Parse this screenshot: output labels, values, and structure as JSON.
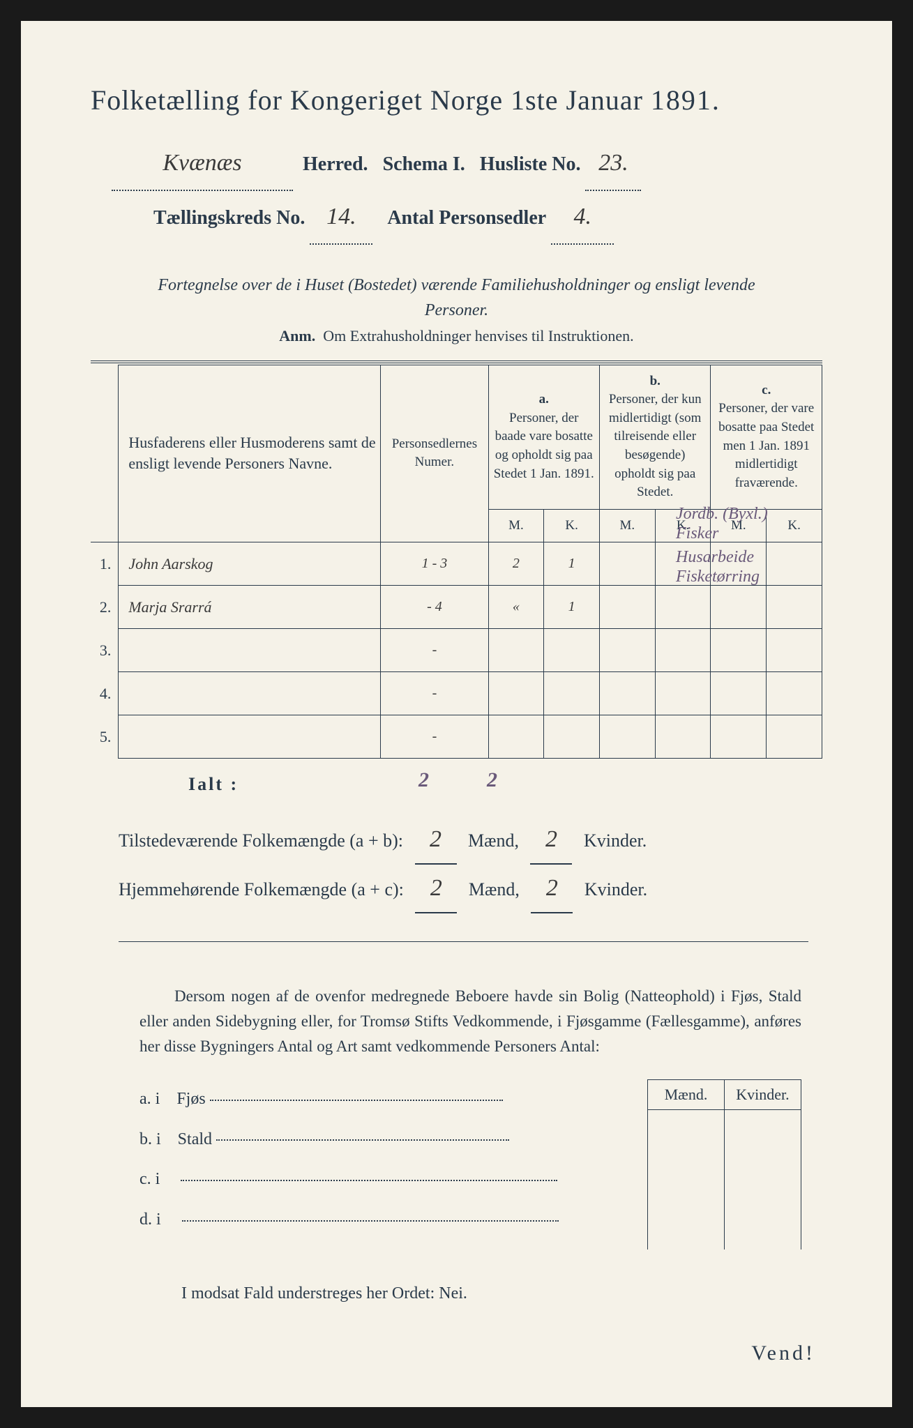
{
  "title": {
    "pre": "Folketælling for Kongeriget Norge 1ste Januar",
    "year": "1891."
  },
  "line2": {
    "herred_value": "Kvænæs",
    "herred_label": "Herred.",
    "schema_label": "Schema I.",
    "husliste_label": "Husliste No.",
    "husliste_value": "23."
  },
  "line3": {
    "kreds_label": "Tællingskreds No.",
    "kreds_value": "14.",
    "antal_label": "Antal Personsedler",
    "antal_value": "4."
  },
  "section_note": "Fortegnelse over de i Huset (Bostedet) værende Familiehusholdninger og ensligt levende Personer.",
  "anm": {
    "label": "Anm.",
    "text": "Om Extrahusholdninger henvises til Instruktionen."
  },
  "table": {
    "head": {
      "names": "Husfaderens eller Husmoderens samt de ensligt levende Personers Navne.",
      "nums": "Personsedlernes Numer.",
      "a_label": "a.",
      "a_text": "Personer, der baade vare bosatte og opholdt sig paa Stedet 1 Jan. 1891.",
      "b_label": "b.",
      "b_text": "Personer, der kun midlertidigt (som tilreisende eller besøgende) opholdt sig paa Stedet.",
      "c_label": "c.",
      "c_text": "Personer, der vare bosatte paa Stedet men 1 Jan. 1891 midlertidigt fraværende.",
      "M": "M.",
      "K": "K."
    },
    "rows": [
      {
        "n": "1.",
        "name": "John Aarskog",
        "num": "1 - 3",
        "aM": "2",
        "aK": "1",
        "bM": "",
        "bK": "",
        "cM": "",
        "cK": "",
        "side": "Jordb. (Byxl.)\nFisker"
      },
      {
        "n": "2.",
        "name": "Marja Srarrá",
        "num": "- 4",
        "aM": "«",
        "aK": "1",
        "bM": "",
        "bK": "",
        "cM": "",
        "cK": "",
        "side": "Husarbeide\nFisketørring"
      },
      {
        "n": "3.",
        "name": "",
        "num": "-",
        "aM": "",
        "aK": "",
        "bM": "",
        "bK": "",
        "cM": "",
        "cK": "",
        "side": ""
      },
      {
        "n": "4.",
        "name": "",
        "num": "-",
        "aM": "",
        "aK": "",
        "bM": "",
        "bK": "",
        "cM": "",
        "cK": "",
        "side": ""
      },
      {
        "n": "5.",
        "name": "",
        "num": "-",
        "aM": "",
        "aK": "",
        "bM": "",
        "bK": "",
        "cM": "",
        "cK": "",
        "side": ""
      }
    ]
  },
  "ialt": {
    "label": "Ialt :",
    "m": "2",
    "k": "2"
  },
  "totals": {
    "line1": {
      "label": "Tilstedeværende Folkemængde (a + b):",
      "m": "2",
      "mlabel": "Mænd,",
      "k": "2",
      "klabel": "Kvinder."
    },
    "line2": {
      "label": "Hjemmehørende Folkemængde (a + c):",
      "m": "2",
      "mlabel": "Mænd,",
      "k": "2",
      "klabel": "Kvinder."
    }
  },
  "para": "Dersom nogen af de ovenfor medregnede Beboere havde sin Bolig (Natteophold) i Fjøs, Stald eller anden Sidebygning eller, for Tromsø Stifts Vedkommende, i Fjøsgamme (Fællesgamme), anføres her disse Bygningers Antal og Art samt vedkommende Personers Antal:",
  "lower": {
    "rows": [
      {
        "pre": "a.  i",
        "label": "Fjøs"
      },
      {
        "pre": "b.  i",
        "label": "Stald"
      },
      {
        "pre": "c.  i",
        "label": ""
      },
      {
        "pre": "d.  i",
        "label": ""
      }
    ],
    "head": {
      "m": "Mænd.",
      "k": "Kvinder."
    }
  },
  "final": "I modsat Fald understreges her Ordet: Nei.",
  "vend": "Vend!"
}
